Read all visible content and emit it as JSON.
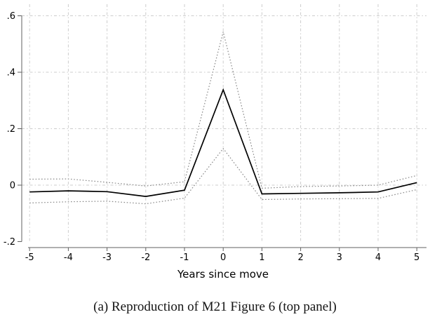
{
  "figure": {
    "caption": "(a) Reproduction of M21 Figure 6 (top panel)"
  },
  "chart_data": {
    "type": "line",
    "title": "",
    "xlabel": "Years since move",
    "ylabel": "",
    "x": [
      -5,
      -4,
      -3,
      -2,
      -1,
      0,
      1,
      2,
      3,
      4,
      5
    ],
    "x_tick_labels": [
      "-5",
      "-4",
      "-3",
      "-2",
      "-1",
      "0",
      "1",
      "2",
      "3",
      "4",
      "5"
    ],
    "y_ticks": [
      -0.2,
      0,
      0.2,
      0.4,
      0.6
    ],
    "y_tick_labels": [
      "-.2",
      "0",
      ".2",
      ".4",
      ".6"
    ],
    "y_gridlines": [
      0,
      0.2,
      0.4,
      0.6
    ],
    "xlim": [
      -5.2,
      5.25
    ],
    "ylim": [
      -0.23,
      0.645
    ],
    "grid": "dashed light-gray at integer x and y ticks 0 to .6",
    "legend_position": "none",
    "series": [
      {
        "name": "estimate",
        "style": "solid",
        "color": "#000000",
        "values": [
          -0.024,
          -0.02,
          -0.023,
          -0.04,
          -0.018,
          0.338,
          -0.031,
          -0.029,
          -0.027,
          -0.024,
          0.009
        ]
      },
      {
        "name": "ci_upper",
        "style": "dotted",
        "color": "#8a8a8a",
        "values": [
          0.021,
          0.022,
          0.01,
          -0.003,
          0.012,
          0.543,
          -0.011,
          -0.005,
          -0.003,
          0.0,
          0.034
        ]
      },
      {
        "name": "ci_lower",
        "style": "dotted",
        "color": "#8a8a8a",
        "values": [
          -0.063,
          -0.059,
          -0.057,
          -0.066,
          -0.046,
          0.13,
          -0.051,
          -0.049,
          -0.048,
          -0.047,
          -0.016
        ]
      }
    ],
    "grid_color": "#cccccc",
    "axis_color": "#606060",
    "text_color": "#000000"
  }
}
